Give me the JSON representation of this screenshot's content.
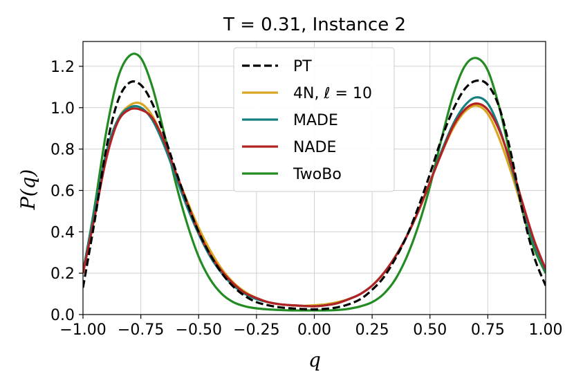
{
  "chart_data": {
    "type": "line",
    "title": "T = 0.31, Instance 2",
    "xlabel": "q",
    "ylabel": "P(q)",
    "xlim": [
      -1.0,
      1.0
    ],
    "ylim": [
      0.0,
      1.32
    ],
    "grid": true,
    "legend_position": "top-center",
    "xticks": [
      "−1.00",
      "−0.75",
      "−0.50",
      "−0.25",
      "0.00",
      "0.25",
      "0.50",
      "0.75",
      "1.00"
    ],
    "xtick_values": [
      -1.0,
      -0.75,
      -0.5,
      -0.25,
      0.0,
      0.25,
      0.5,
      0.75,
      1.0
    ],
    "yticks": [
      "0.0",
      "0.2",
      "0.4",
      "0.6",
      "0.8",
      "1.0",
      "1.2"
    ],
    "ytick_values": [
      0.0,
      0.2,
      0.4,
      0.6,
      0.8,
      1.0,
      1.2
    ],
    "x": [
      -1.0,
      -0.95,
      -0.9,
      -0.85,
      -0.8,
      -0.75,
      -0.7,
      -0.65,
      -0.6,
      -0.55,
      -0.5,
      -0.45,
      -0.4,
      -0.35,
      -0.3,
      -0.25,
      -0.2,
      -0.15,
      -0.1,
      -0.05,
      0.0,
      0.05,
      0.1,
      0.15,
      0.2,
      0.25,
      0.3,
      0.35,
      0.4,
      0.45,
      0.5,
      0.55,
      0.6,
      0.65,
      0.7,
      0.75,
      0.8,
      0.85,
      0.9,
      0.95,
      1.0
    ],
    "series": [
      {
        "name": "PT",
        "color": "#000000",
        "dash": true,
        "values": [
          0.13,
          0.45,
          0.8,
          1.03,
          1.12,
          1.11,
          1.02,
          0.87,
          0.7,
          0.54,
          0.4,
          0.29,
          0.2,
          0.135,
          0.09,
          0.06,
          0.045,
          0.035,
          0.03,
          0.027,
          0.025,
          0.028,
          0.035,
          0.05,
          0.075,
          0.12,
          0.18,
          0.27,
          0.38,
          0.52,
          0.68,
          0.85,
          0.99,
          1.09,
          1.13,
          1.11,
          1.0,
          0.78,
          0.5,
          0.28,
          0.14
        ]
      },
      {
        "name": "4N, ℓ = 10",
        "color": "#DAA520",
        "dash": false,
        "values": [
          0.2,
          0.48,
          0.76,
          0.94,
          1.01,
          1.02,
          0.96,
          0.84,
          0.69,
          0.55,
          0.42,
          0.31,
          0.22,
          0.155,
          0.11,
          0.08,
          0.06,
          0.05,
          0.045,
          0.042,
          0.045,
          0.05,
          0.06,
          0.075,
          0.1,
          0.14,
          0.2,
          0.28,
          0.38,
          0.5,
          0.64,
          0.78,
          0.9,
          0.98,
          1.01,
          0.97,
          0.85,
          0.69,
          0.51,
          0.34,
          0.21
        ]
      },
      {
        "name": "MADE",
        "color": "#148080",
        "dash": false,
        "values": [
          0.21,
          0.5,
          0.78,
          0.94,
          1.0,
          1.0,
          0.94,
          0.82,
          0.67,
          0.52,
          0.39,
          0.28,
          0.2,
          0.14,
          0.1,
          0.075,
          0.06,
          0.05,
          0.045,
          0.042,
          0.04,
          0.045,
          0.055,
          0.075,
          0.1,
          0.14,
          0.2,
          0.28,
          0.38,
          0.5,
          0.64,
          0.79,
          0.92,
          1.01,
          1.05,
          1.02,
          0.9,
          0.72,
          0.52,
          0.34,
          0.21
        ]
      },
      {
        "name": "NADE",
        "color": "#B22222",
        "dash": false,
        "values": [
          0.2,
          0.47,
          0.75,
          0.93,
          0.99,
          0.99,
          0.95,
          0.84,
          0.69,
          0.54,
          0.4,
          0.29,
          0.21,
          0.15,
          0.105,
          0.08,
          0.06,
          0.05,
          0.045,
          0.042,
          0.04,
          0.045,
          0.055,
          0.075,
          0.1,
          0.14,
          0.2,
          0.28,
          0.38,
          0.5,
          0.64,
          0.78,
          0.91,
          0.99,
          1.02,
          0.99,
          0.89,
          0.73,
          0.54,
          0.36,
          0.22
        ]
      },
      {
        "name": "TwoBo",
        "color": "#228B22",
        "dash": false,
        "values": [
          0.2,
          0.52,
          0.88,
          1.14,
          1.25,
          1.24,
          1.1,
          0.88,
          0.64,
          0.44,
          0.28,
          0.17,
          0.1,
          0.06,
          0.04,
          0.03,
          0.025,
          0.022,
          0.02,
          0.02,
          0.02,
          0.02,
          0.022,
          0.028,
          0.04,
          0.06,
          0.1,
          0.17,
          0.28,
          0.43,
          0.62,
          0.85,
          1.06,
          1.2,
          1.24,
          1.18,
          1.0,
          0.75,
          0.5,
          0.32,
          0.2
        ]
      }
    ]
  }
}
